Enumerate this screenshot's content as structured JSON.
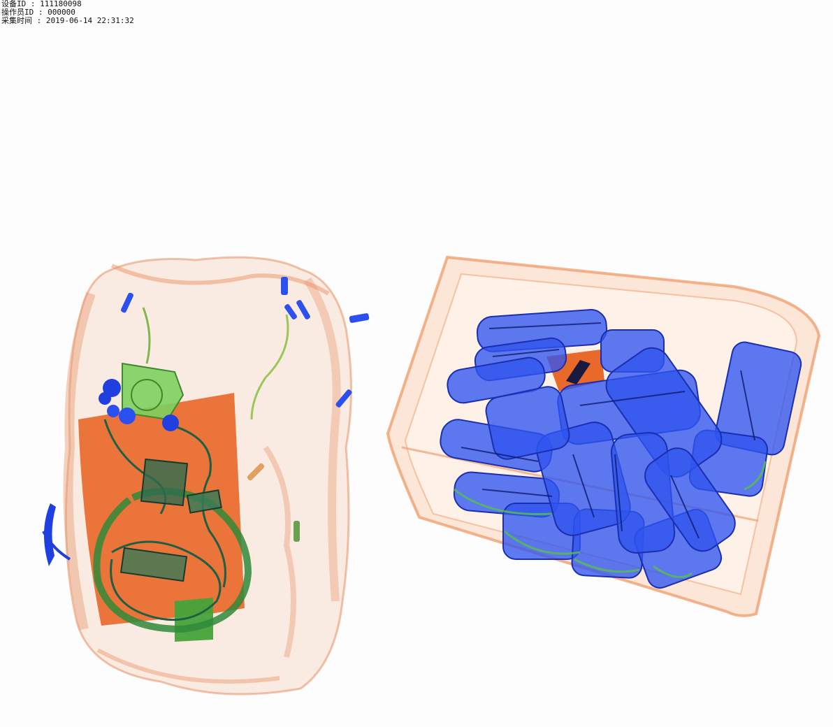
{
  "overlay": {
    "device_label": "设备ID",
    "device_value": "111180098",
    "operator_label": "操作员ID",
    "operator_value": "000000",
    "time_label": "采集时间",
    "time_value": "2019-06-14 22:31:32",
    "separator": " : "
  },
  "scan": {
    "colors": {
      "organic": "#e8692a",
      "mixed": "#5cbf46",
      "metal": "#1f3fe0",
      "background": "#fdfdfd"
    }
  }
}
